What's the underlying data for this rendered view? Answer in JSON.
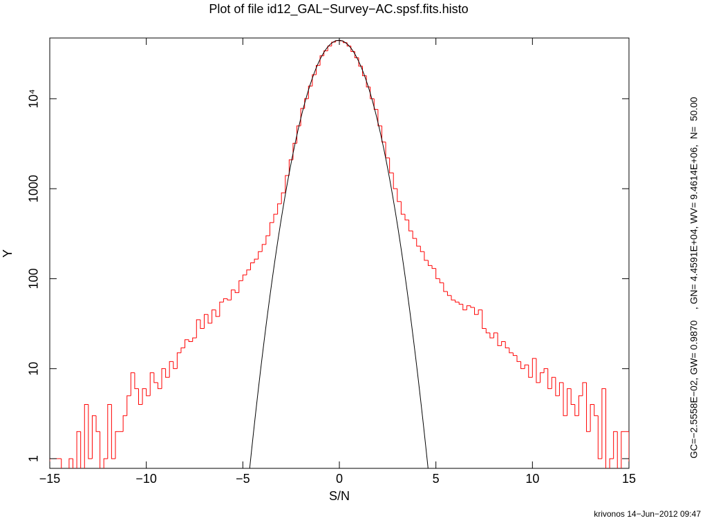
{
  "chart_data": {
    "type": "histogram",
    "title": "Plot of file id12_GAL−Survey−AC.spsf.fits.histo",
    "x_label": "S/N",
    "y_label": "Y",
    "annotation": "GC=−2.5558E−02, GW= 0.9870    , GN= 4.4591E+04, WV= 9.4614E+06,  N=  50.00",
    "footer": "krivonos 14−Jun−2012 09:47",
    "log_y": true,
    "color": "#ff0000",
    "bins": [
      -15.0,
      -14.8,
      -14.6,
      -14.4,
      -14.2,
      -14.0,
      -13.8,
      -13.6,
      -13.4,
      -13.2,
      -13.0,
      -12.8,
      -12.6,
      -12.4,
      -12.2,
      -12.0,
      -11.8,
      -11.6,
      -11.4,
      -11.2,
      -11.0,
      -10.8,
      -10.6,
      -10.4,
      -10.2,
      -10.0,
      -9.8,
      -9.6,
      -9.4,
      -9.2,
      -9.0,
      -8.8,
      -8.6,
      -8.4,
      -8.2,
      -8.0,
      -7.8,
      -7.6,
      -7.4,
      -7.2,
      -7.0,
      -6.8,
      -6.6,
      -6.4,
      -6.2,
      -6.0,
      -5.8,
      -5.6,
      -5.4,
      -5.2,
      -5.0,
      -4.8,
      -4.6,
      -4.4,
      -4.2,
      -4.0,
      -3.8,
      -3.6,
      -3.4,
      -3.2,
      -3.0,
      -2.8,
      -2.6,
      -2.4,
      -2.2,
      -2.0,
      -1.8,
      -1.6,
      -1.4,
      -1.2,
      -1.0,
      -0.8,
      -0.6,
      -0.4,
      -0.2,
      0.0,
      0.2,
      0.4,
      0.6,
      0.8,
      1.0,
      1.2,
      1.4,
      1.6,
      1.8,
      2.0,
      2.2,
      2.4,
      2.6,
      2.8,
      3.0,
      3.2,
      3.4,
      3.6,
      3.8,
      4.0,
      4.2,
      4.4,
      4.6,
      4.8,
      5.0,
      5.2,
      5.4,
      5.6,
      5.8,
      6.0,
      6.2,
      6.4,
      6.6,
      6.8,
      7.0,
      7.2,
      7.4,
      7.6,
      7.8,
      8.0,
      8.2,
      8.4,
      8.6,
      8.8,
      9.0,
      9.2,
      9.4,
      9.6,
      9.8,
      10.0,
      10.2,
      10.4,
      10.6,
      10.8,
      11.0,
      11.2,
      11.4,
      11.6,
      11.8,
      12.0,
      12.2,
      12.4,
      12.6,
      12.8,
      13.0,
      13.2,
      13.4,
      13.6,
      13.8,
      14.0,
      14.2,
      14.4,
      14.6,
      14.8,
      15.0
    ],
    "values": [
      1,
      1,
      1,
      0,
      0,
      1,
      0,
      2,
      0,
      4,
      1,
      3,
      2,
      0,
      1,
      4,
      1,
      2,
      2,
      3,
      5,
      9,
      6,
      4,
      6,
      5,
      9,
      7,
      6,
      10,
      8,
      12,
      10,
      15,
      17,
      21,
      20,
      22,
      35,
      28,
      40,
      32,
      45,
      38,
      55,
      60,
      58,
      75,
      70,
      95,
      110,
      125,
      150,
      165,
      200,
      240,
      300,
      420,
      520,
      680,
      900,
      1400,
      2100,
      3200,
      5000,
      7800,
      10000,
      13800,
      18500,
      23500,
      30000,
      34000,
      38500,
      42500,
      44300,
      44000,
      42000,
      38500,
      33500,
      28500,
      23000,
      18000,
      13500,
      10000,
      7600,
      5000,
      3300,
      2200,
      1500,
      1000,
      720,
      520,
      450,
      340,
      280,
      230,
      200,
      160,
      140,
      130,
      100,
      90,
      72,
      65,
      58,
      55,
      52,
      45,
      50,
      48,
      40,
      45,
      28,
      25,
      22,
      25,
      18,
      20,
      17,
      15,
      14,
      12,
      10,
      11,
      8,
      13,
      7,
      9,
      10,
      6,
      8,
      5,
      7,
      3,
      6,
      4,
      3,
      5,
      7,
      2,
      4,
      3,
      1,
      6,
      0,
      1,
      2,
      0,
      2,
      2
    ],
    "fit": {
      "type": "gaussian",
      "center": -0.025558,
      "width": 0.987,
      "norm": 44591,
      "color": "#000000"
    },
    "xlim": [
      -15,
      15
    ],
    "xticks": [
      {
        "value": -15,
        "label": "−15"
      },
      {
        "value": -10,
        "label": "−10"
      },
      {
        "value": -5,
        "label": "−5"
      },
      0,
      5,
      10,
      15
    ],
    "ylim": [
      0.78,
      47300
    ],
    "yticks": [
      1,
      10,
      100,
      1000,
      {
        "value": 10000,
        "label": "10⁴"
      }
    ]
  }
}
